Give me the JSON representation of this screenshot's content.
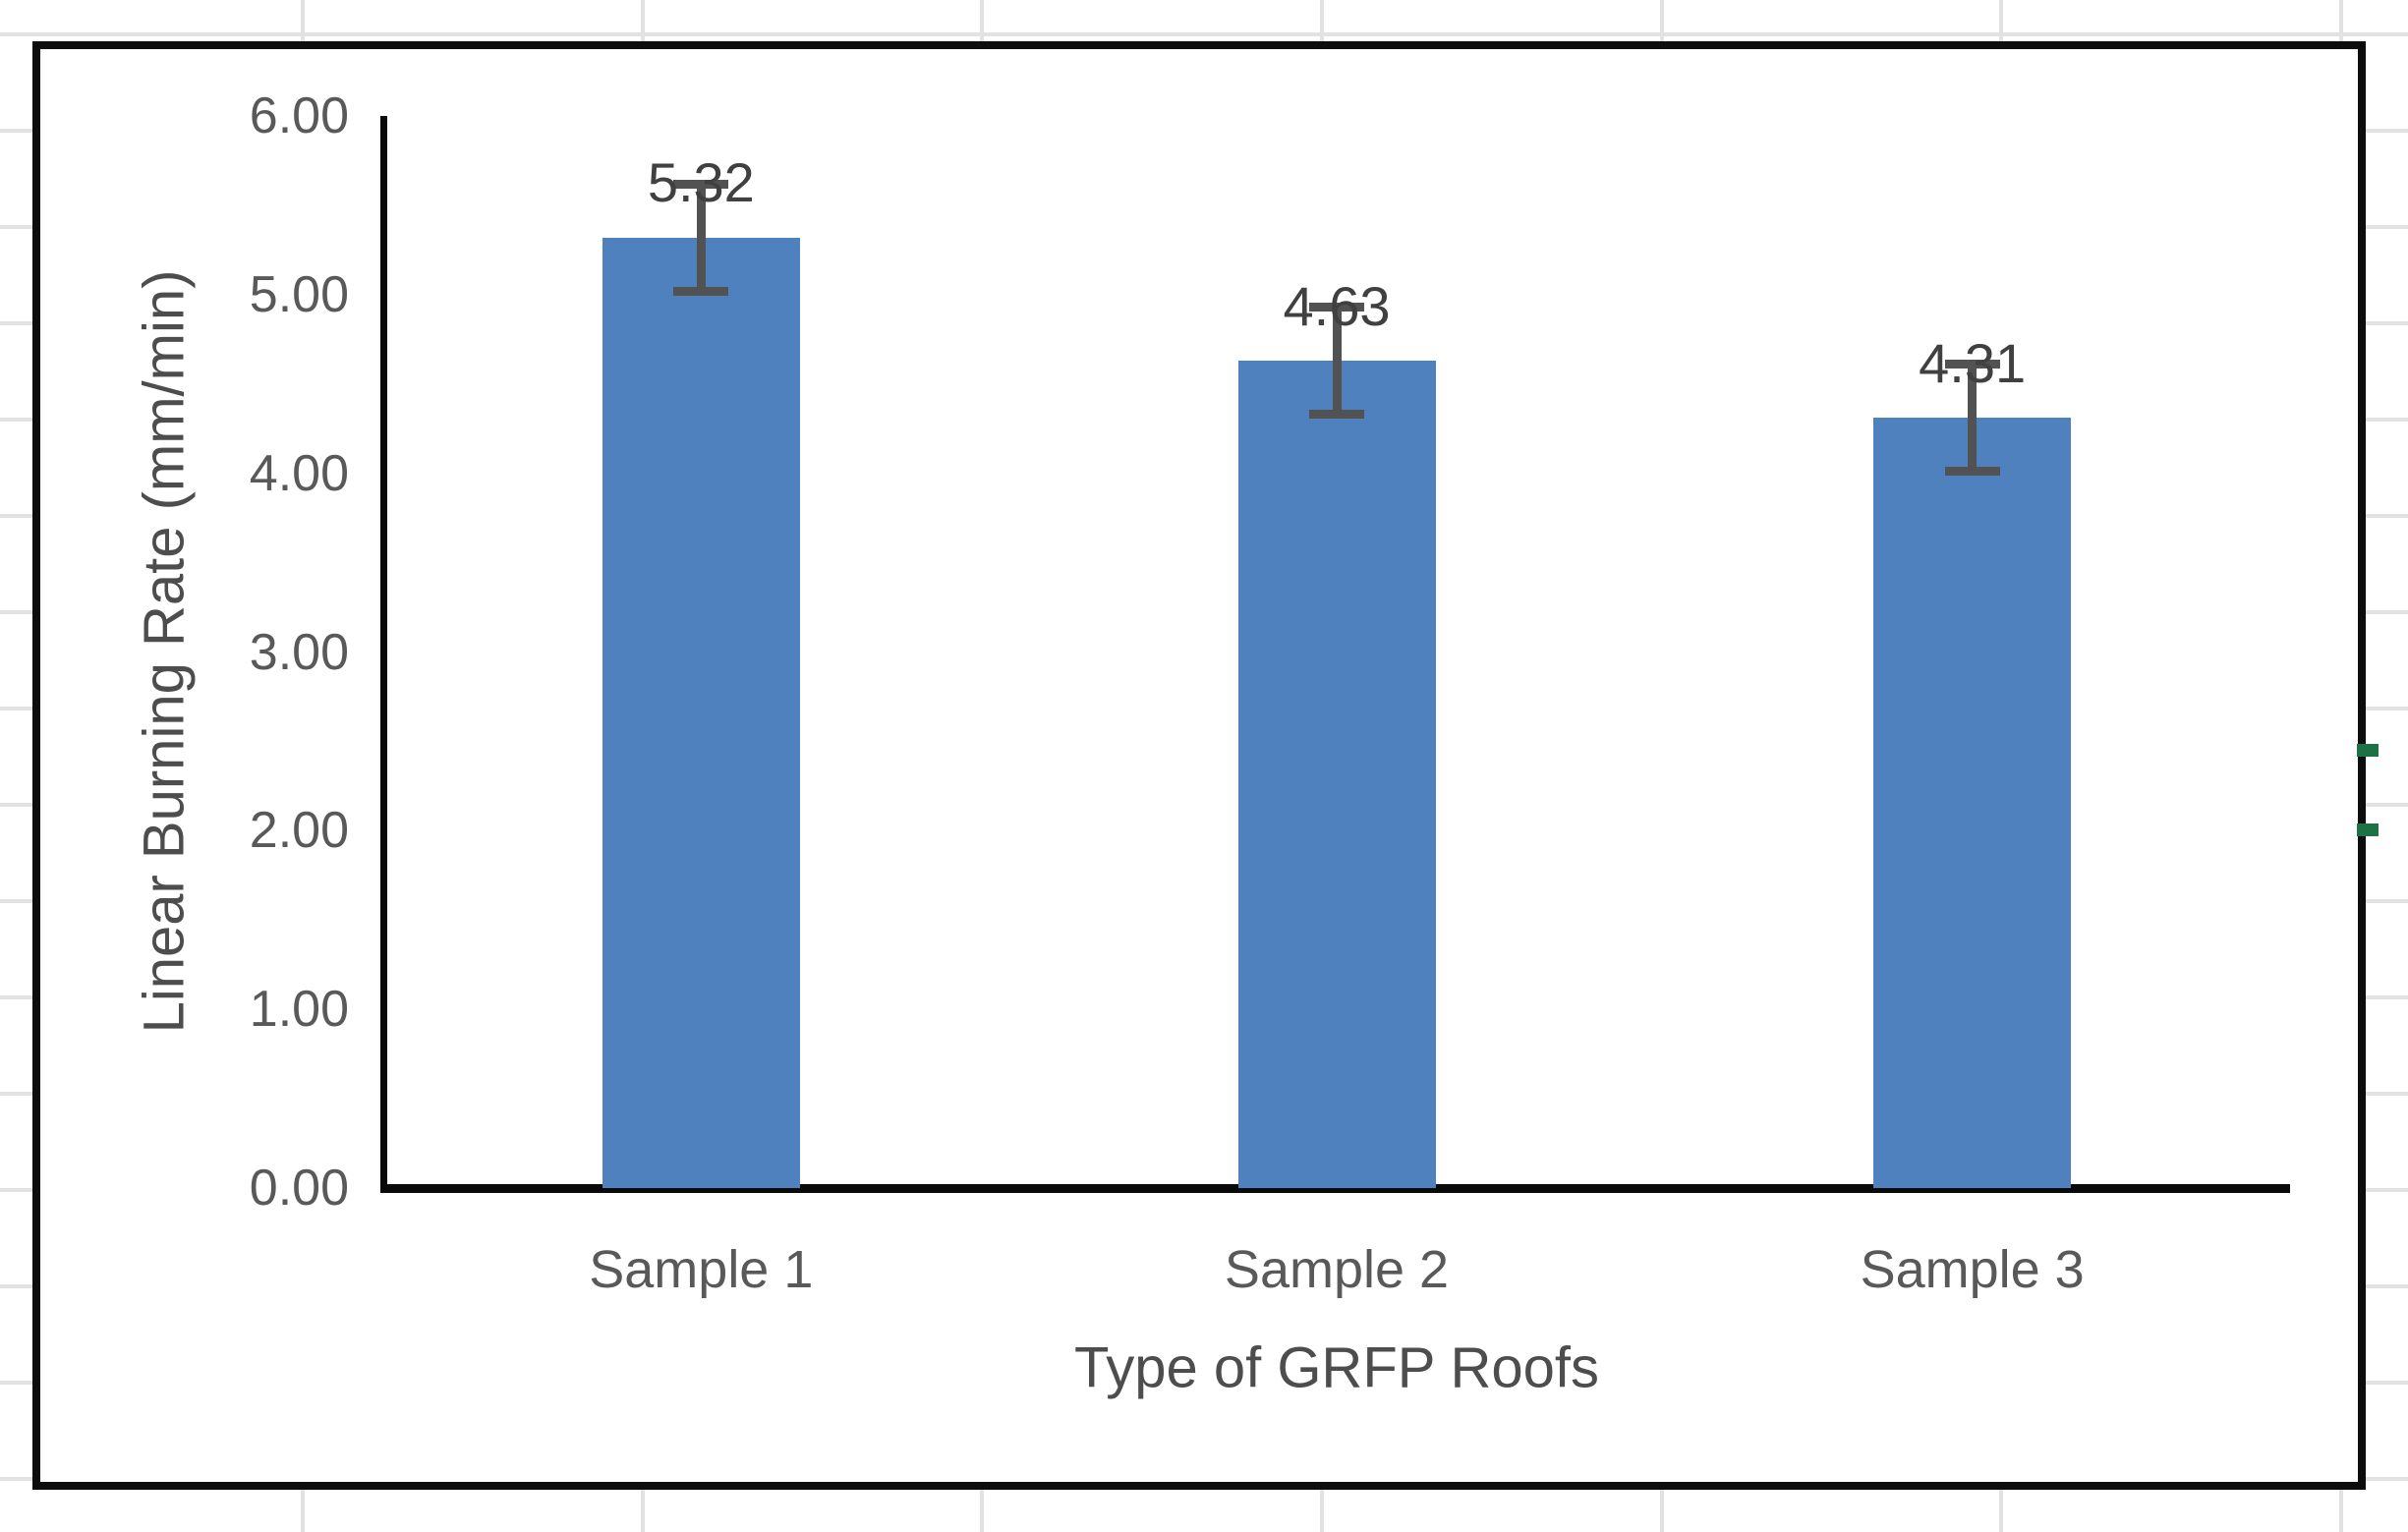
{
  "colors": {
    "background": "#ffffff",
    "frame-border": "#0d0d0d",
    "axis-line": "#0a0a0a",
    "tick-text": "#595959",
    "title-text": "#4d4d4d",
    "label-text": "#404040",
    "gridline": "#e2e2e2",
    "error-bar": "#525252",
    "green-marker": "#1e7145"
  },
  "chart_data": {
    "type": "bar",
    "categories": [
      "Sample 1",
      "Sample 2",
      "Sample 3"
    ],
    "values": [
      5.32,
      4.63,
      4.31
    ],
    "data_labels": [
      "5.32",
      "4.63",
      "4.31"
    ],
    "error_bars": {
      "symmetric": true,
      "values": [
        0.3,
        0.3,
        0.3
      ]
    },
    "xlabel": "Type of GRFP Roofs",
    "ylabel": "Linear Burning Rate (mm/min)",
    "ylim": [
      0,
      6
    ],
    "ytick_interval": 1.0,
    "ytick_labels": [
      "0.00",
      "1.00",
      "2.00",
      "3.00",
      "4.00",
      "5.00",
      "6.00"
    ],
    "bar_fill": "#4E81BD",
    "grid": false,
    "legend": false,
    "data_labels_position": "above-error-bar"
  }
}
